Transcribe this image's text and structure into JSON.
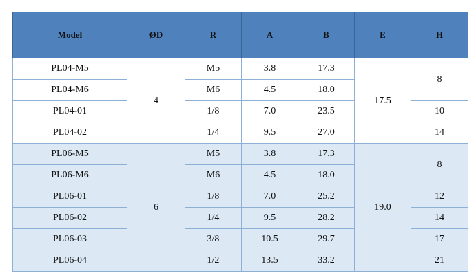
{
  "table": {
    "header": [
      "Model",
      "ØD",
      "R",
      "A",
      "B",
      "E",
      "H"
    ],
    "rows": [
      [
        "PL04-M5",
        "4",
        "M5",
        "3.8",
        "17.3",
        "17.5",
        "8"
      ],
      [
        "PL04-M6",
        "M6",
        "4.5",
        "18.0"
      ],
      [
        "PL04-01",
        "1/8",
        "7.0",
        "23.5",
        "10"
      ],
      [
        "PL04-02",
        "1/4",
        "9.5",
        "27.0",
        "14"
      ],
      [
        "PL06-M5",
        "6",
        "M5",
        "3.8",
        "17.3",
        "19.0",
        "8"
      ],
      [
        "PL06-M6",
        "M6",
        "4.5",
        "18.0"
      ],
      [
        "PL06-01",
        "1/8",
        "7.0",
        "25.2",
        "12"
      ],
      [
        "PL06-02",
        "1/4",
        "9.5",
        "28.2",
        "14"
      ],
      [
        "PL06-03",
        "3/8",
        "10.5",
        "29.7",
        "17"
      ],
      [
        "PL06-04",
        "1/2",
        "13.5",
        "33.2",
        "21"
      ]
    ]
  }
}
